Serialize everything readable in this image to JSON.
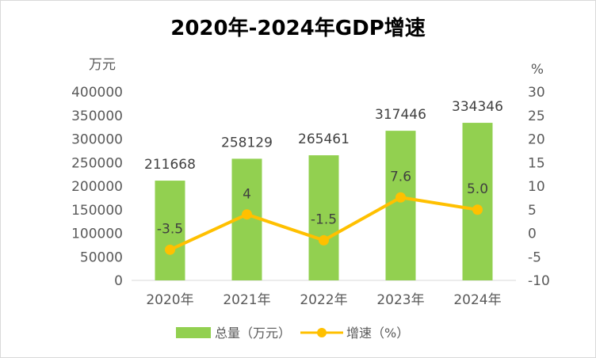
{
  "chart_data": {
    "type": "bar",
    "title": "2020年-2024年GDP增速",
    "categories": [
      "2020年",
      "2021年",
      "2022年",
      "2023年",
      "2024年"
    ],
    "series": [
      {
        "name": "总量（万元）",
        "type": "bar",
        "axis": "left",
        "color": "#92d050",
        "values": [
          211668,
          258129,
          265461,
          317446,
          334346
        ],
        "labels": [
          "211668",
          "258129",
          "265461",
          "317446",
          "334346"
        ]
      },
      {
        "name": "增速（%）",
        "type": "line",
        "axis": "right",
        "color": "#ffc000",
        "values": [
          -3.5,
          4,
          -1.5,
          7.6,
          5.0
        ],
        "labels": [
          "-3.5",
          "4",
          "-1.5",
          "7.6",
          "5.0"
        ]
      }
    ],
    "y_left": {
      "unit": "万元",
      "min": 0,
      "max": 400000,
      "ticks": [
        0,
        50000,
        100000,
        150000,
        200000,
        250000,
        300000,
        350000,
        400000
      ],
      "tick_labels": [
        "0",
        "50000",
        "100000",
        "150000",
        "200000",
        "250000",
        "300000",
        "350000",
        "400000"
      ]
    },
    "y_right": {
      "unit": "%",
      "min": -10,
      "max": 30,
      "ticks": [
        -10,
        -5,
        0,
        5,
        10,
        15,
        20,
        25,
        30
      ],
      "tick_labels": [
        "-10",
        "-5",
        "0",
        "5",
        "10",
        "15",
        "20",
        "25",
        "30"
      ]
    },
    "grid": false,
    "legend_position": "bottom"
  }
}
